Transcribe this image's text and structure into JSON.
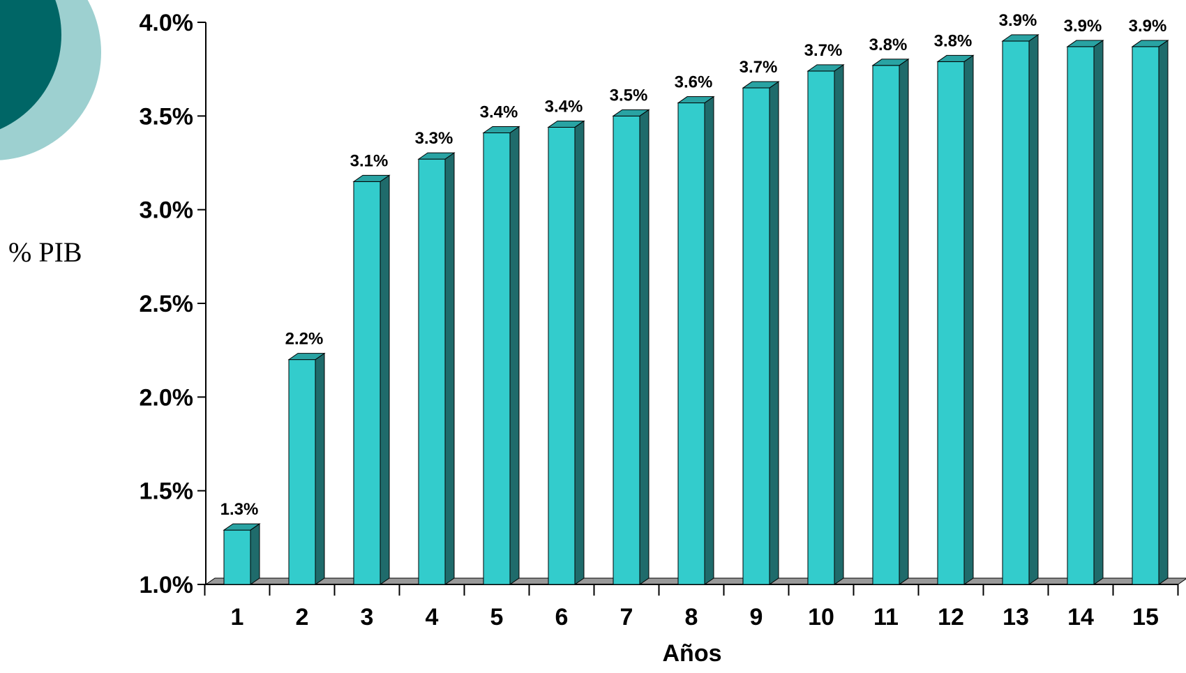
{
  "side_label": "% PIB",
  "colors": {
    "circle_outer": "#9dd0d0",
    "circle_inner": "#006666",
    "bar_front": "#33cccc",
    "bar_side": "#1f6b6b",
    "bar_top": "#29a3a3",
    "floor": "#999999"
  },
  "chart_data": {
    "type": "bar",
    "xlabel": "Años",
    "ylabel": "",
    "ylim": [
      1.0,
      4.0
    ],
    "yticks": [
      "1.0%",
      "1.5%",
      "2.0%",
      "2.5%",
      "3.0%",
      "3.5%",
      "4.0%"
    ],
    "ytick_values": [
      1.0,
      1.5,
      2.0,
      2.5,
      3.0,
      3.5,
      4.0
    ],
    "categories": [
      "1",
      "2",
      "3",
      "4",
      "5",
      "6",
      "7",
      "8",
      "9",
      "10",
      "11",
      "12",
      "13",
      "14",
      "15"
    ],
    "values": [
      1.29,
      2.2,
      3.15,
      3.27,
      3.41,
      3.44,
      3.5,
      3.57,
      3.65,
      3.74,
      3.77,
      3.79,
      3.9,
      3.87,
      3.87
    ],
    "value_labels": [
      "1.3%",
      "2.2%",
      "3.1%",
      "3.3%",
      "3.4%",
      "3.4%",
      "3.5%",
      "3.6%",
      "3.7%",
      "3.7%",
      "3.8%",
      "3.8%",
      "3.9%",
      "3.9%",
      "3.9%"
    ],
    "grid": false,
    "legend": "none"
  }
}
